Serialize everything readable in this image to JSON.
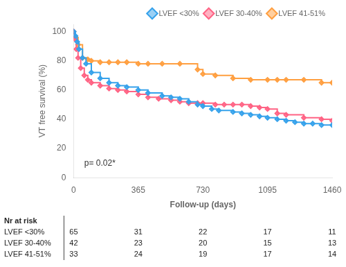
{
  "chart_data": {
    "type": "step",
    "xlabel": "Follow-up (days)",
    "ylabel": "VT free survival (%)",
    "xlim": [
      0,
      1460
    ],
    "ylim": [
      0,
      105
    ],
    "xticks": [
      0,
      365,
      730,
      1095,
      1460
    ],
    "yticks": [
      0,
      20,
      40,
      60,
      80,
      100
    ],
    "grid": false,
    "legend": "upper right",
    "series": [
      {
        "name": "LVEF <30%",
        "marker": "diamond",
        "x": [
          0,
          10,
          20,
          30,
          50,
          70,
          100,
          150,
          200,
          250,
          300,
          365,
          420,
          500,
          550,
          600,
          650,
          700,
          730,
          780,
          820,
          900,
          950,
          1000,
          1050,
          1095,
          1150,
          1200,
          1250,
          1300,
          1350,
          1400,
          1460
        ],
        "values": [
          100,
          97,
          93,
          88,
          82,
          78,
          72,
          68,
          65,
          63,
          62,
          60,
          58,
          56,
          55,
          54,
          52,
          50,
          49,
          47,
          46,
          45,
          44,
          43,
          42,
          41,
          40,
          39,
          38,
          37,
          37,
          36,
          36
        ]
      },
      {
        "name": "LVEF 30-40%",
        "marker": "diamond",
        "x": [
          0,
          5,
          15,
          25,
          40,
          60,
          80,
          100,
          150,
          200,
          250,
          300,
          365,
          420,
          480,
          550,
          600,
          650,
          700,
          730,
          800,
          850,
          900,
          950,
          1000,
          1050,
          1095,
          1150,
          1200,
          1300,
          1400,
          1460
        ],
        "values": [
          100,
          95,
          88,
          82,
          75,
          70,
          67,
          65,
          63,
          61,
          60,
          59,
          57,
          55,
          54,
          53,
          52,
          51,
          51,
          51,
          50,
          50,
          50,
          50,
          49,
          48,
          47,
          44,
          43,
          41,
          40,
          39
        ]
      },
      {
        "name": "LVEF 41-51%",
        "marker": "diamond",
        "x": [
          0,
          10,
          25,
          50,
          80,
          100,
          150,
          200,
          250,
          300,
          365,
          420,
          500,
          600,
          700,
          730,
          800,
          900,
          1000,
          1095,
          1150,
          1200,
          1300,
          1400,
          1460
        ],
        "values": [
          100,
          96,
          91,
          82,
          81,
          80,
          79,
          79,
          79,
          79,
          78,
          78,
          78,
          78,
          74,
          71,
          70,
          68,
          67,
          67,
          67,
          67,
          67,
          65,
          65
        ]
      }
    ],
    "annotations": [
      {
        "text": "p= 0.02*",
        "x": 60,
        "y": 7
      }
    ],
    "risk_table": {
      "label": "Nr at risk",
      "rows": [
        {
          "name": "LVEF <30%",
          "values": [
            65,
            31,
            22,
            17,
            11
          ]
        },
        {
          "name": "LVEF 30-40%",
          "values": [
            42,
            23,
            20,
            15,
            13
          ]
        },
        {
          "name": "LVEF 41-51%",
          "values": [
            33,
            24,
            19,
            17,
            14
          ]
        }
      ]
    }
  }
}
